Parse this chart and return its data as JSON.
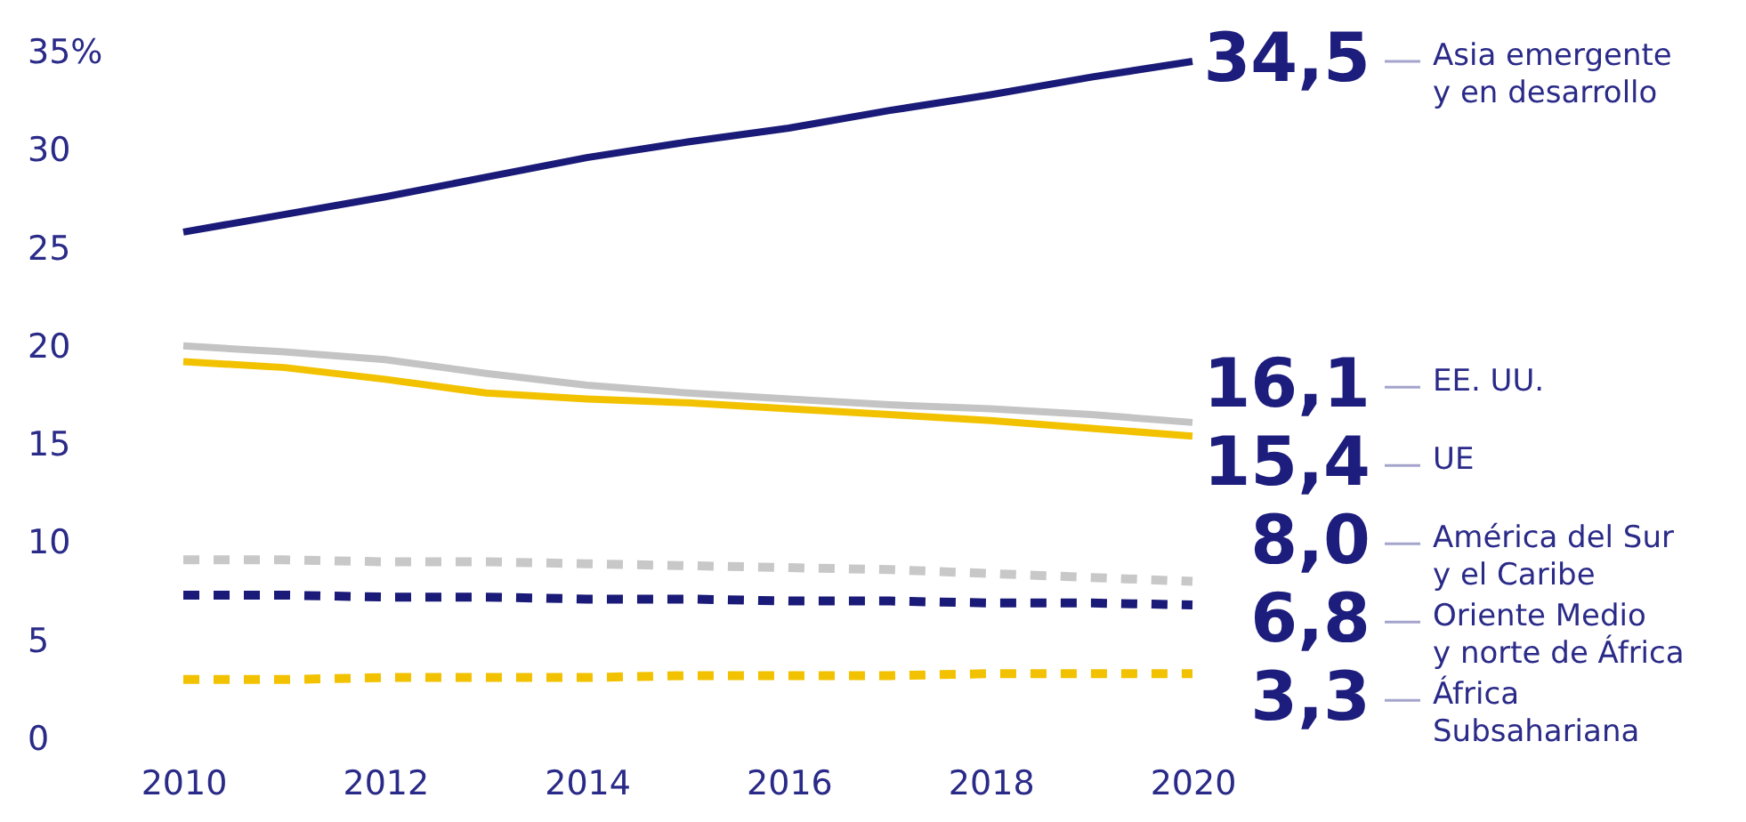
{
  "chart_data": {
    "type": "line",
    "x": [
      2010,
      2011,
      2012,
      2013,
      2014,
      2015,
      2016,
      2017,
      2018,
      2019,
      2020
    ],
    "xlim": [
      2010,
      2020
    ],
    "xticks": [
      2010,
      2012,
      2014,
      2016,
      2018,
      2020
    ],
    "ylim": [
      0,
      35
    ],
    "yticks": [
      0,
      5,
      10,
      15,
      20,
      25,
      30,
      {
        "value": 35,
        "label": "35%"
      }
    ],
    "grid": false,
    "series": [
      {
        "name": "Asia emergente\ny en desarrollo",
        "color": "#1a1a78",
        "line_style": "solid",
        "values": [
          25.8,
          26.7,
          27.6,
          28.6,
          29.6,
          30.4,
          31.1,
          32.0,
          32.8,
          33.7,
          34.5
        ],
        "value_labels": [
          null,
          null,
          null,
          null,
          null,
          null,
          null,
          null,
          null,
          null,
          "34,5"
        ]
      },
      {
        "name": "EE. UU.",
        "color": "#c4c4c4",
        "line_style": "solid",
        "values": [
          20.0,
          19.7,
          19.3,
          18.6,
          18.0,
          17.6,
          17.3,
          17.0,
          16.8,
          16.5,
          16.1
        ],
        "value_labels": [
          null,
          null,
          null,
          null,
          null,
          null,
          null,
          null,
          null,
          null,
          "16,1"
        ]
      },
      {
        "name": "UE",
        "color": "#f2c200",
        "line_style": "solid",
        "values": [
          19.2,
          18.9,
          18.3,
          17.6,
          17.3,
          17.1,
          16.8,
          16.5,
          16.2,
          15.8,
          15.4
        ],
        "value_labels": [
          null,
          null,
          null,
          null,
          null,
          null,
          null,
          null,
          null,
          null,
          "15,4"
        ]
      },
      {
        "name": "América del Sur\ny el Caribe",
        "color": "#c8c8c8",
        "line_style": "dashed",
        "values": [
          9.1,
          9.1,
          9.0,
          9.0,
          8.9,
          8.8,
          8.7,
          8.6,
          8.4,
          8.2,
          8.0
        ],
        "value_labels": [
          null,
          null,
          null,
          null,
          null,
          null,
          null,
          null,
          null,
          null,
          "8,0"
        ]
      },
      {
        "name": "Oriente Medio\ny norte de África",
        "color": "#1a1a78",
        "line_style": "dashed",
        "values": [
          7.3,
          7.3,
          7.2,
          7.2,
          7.1,
          7.1,
          7.0,
          7.0,
          6.9,
          6.9,
          6.8
        ],
        "value_labels": [
          null,
          null,
          null,
          null,
          null,
          null,
          null,
          null,
          null,
          null,
          "6,8"
        ]
      },
      {
        "name": "África\nSubsahariana",
        "color": "#f2c200",
        "line_style": "dashed",
        "values": [
          3.0,
          3.0,
          3.1,
          3.1,
          3.1,
          3.2,
          3.2,
          3.2,
          3.3,
          3.3,
          3.3
        ],
        "value_labels": [
          null,
          null,
          null,
          null,
          null,
          null,
          null,
          null,
          null,
          null,
          "3,3"
        ]
      }
    ]
  }
}
